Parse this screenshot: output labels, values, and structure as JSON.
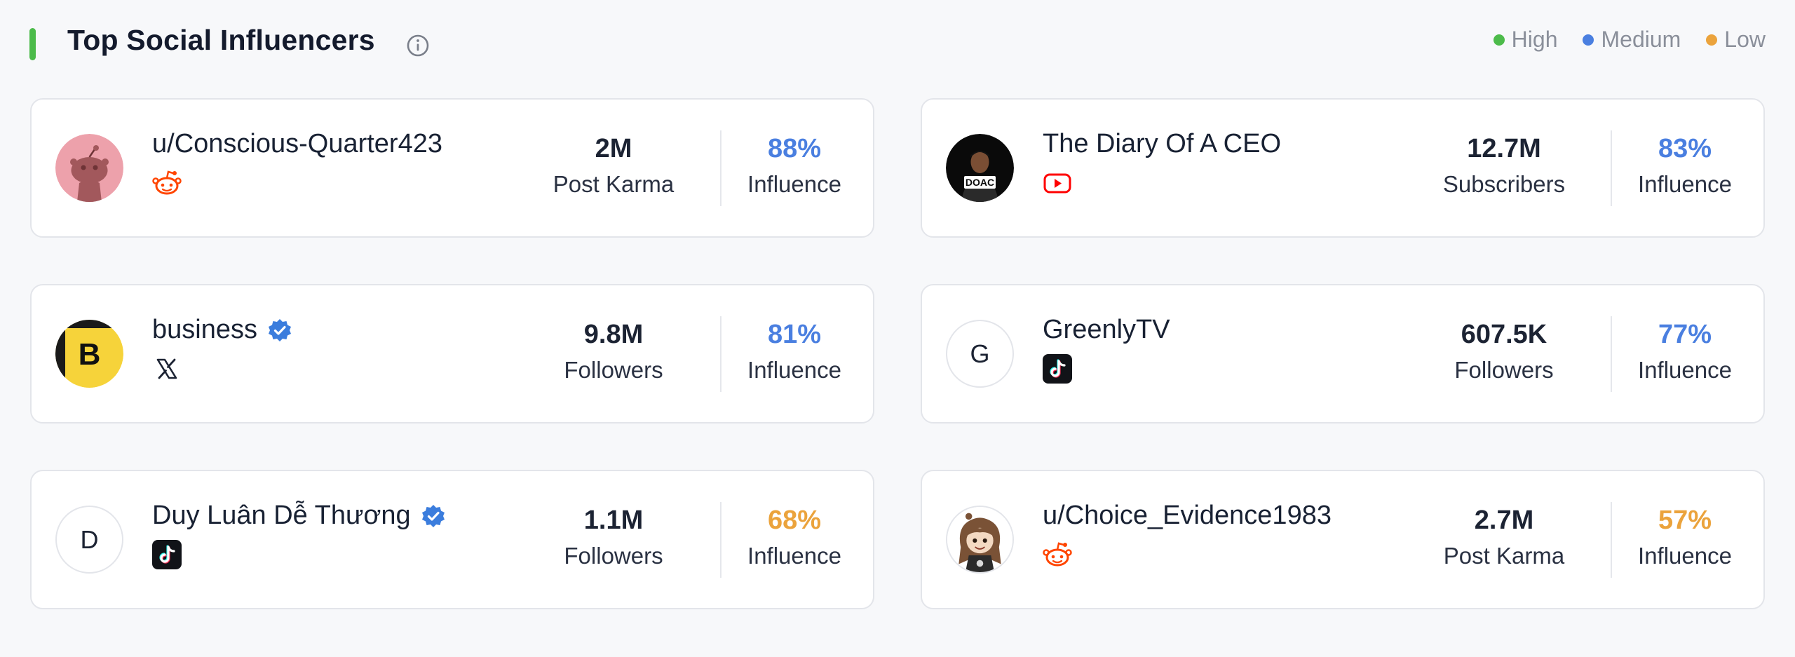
{
  "header": {
    "title": "Top Social Influencers",
    "info_icon": "info-icon",
    "accent_color": "#4cbb4a"
  },
  "legend": [
    {
      "label": "High",
      "color": "#4cbb4a"
    },
    {
      "label": "Medium",
      "color": "#4a7fe0"
    },
    {
      "label": "Low",
      "color": "#eba33c"
    }
  ],
  "colors": {
    "medium": "#4a7fe0",
    "low": "#eba33c",
    "reddit": "#ff4500",
    "youtube": "#ff0000",
    "verified": "#3b7ddd"
  },
  "influencers": [
    {
      "name": "u/Conscious-Quarter423",
      "verified": false,
      "platform": "reddit-icon",
      "stat_value": "2M",
      "stat_label": "Post Karma",
      "influence": "88%",
      "influence_level": "Medium",
      "influence_label": "Influence",
      "avatar": "reddit-avatar-icon"
    },
    {
      "name": "The Diary Of A CEO",
      "verified": false,
      "platform": "youtube-icon",
      "stat_value": "12.7M",
      "stat_label": "Subscribers",
      "influence": "83%",
      "influence_level": "Medium",
      "influence_label": "Influence",
      "avatar": "doac-logo-avatar",
      "avatar_text": "DOAC"
    },
    {
      "name": "business",
      "verified": true,
      "platform": "x-icon",
      "stat_value": "9.8M",
      "stat_label": "Followers",
      "influence": "81%",
      "influence_level": "Medium",
      "influence_label": "Influence",
      "avatar": "business-logo-avatar",
      "avatar_text": "B"
    },
    {
      "name": "GreenlyTV",
      "verified": false,
      "platform": "tiktok-icon",
      "stat_value": "607.5K",
      "stat_label": "Followers",
      "influence": "77%",
      "influence_level": "Medium",
      "influence_label": "Influence",
      "avatar": "letter-avatar",
      "avatar_text": "G"
    },
    {
      "name": "Duy Luân Dễ Thương",
      "verified": true,
      "platform": "tiktok-icon",
      "stat_value": "1.1M",
      "stat_label": "Followers",
      "influence": "68%",
      "influence_level": "Low",
      "influence_label": "Influence",
      "avatar": "letter-avatar",
      "avatar_text": "D"
    },
    {
      "name": "u/Choice_Evidence1983",
      "verified": false,
      "platform": "reddit-icon",
      "stat_value": "2.7M",
      "stat_label": "Post Karma",
      "influence": "57%",
      "influence_level": "Low",
      "influence_label": "Influence",
      "avatar": "cartoon-character-avatar"
    }
  ]
}
